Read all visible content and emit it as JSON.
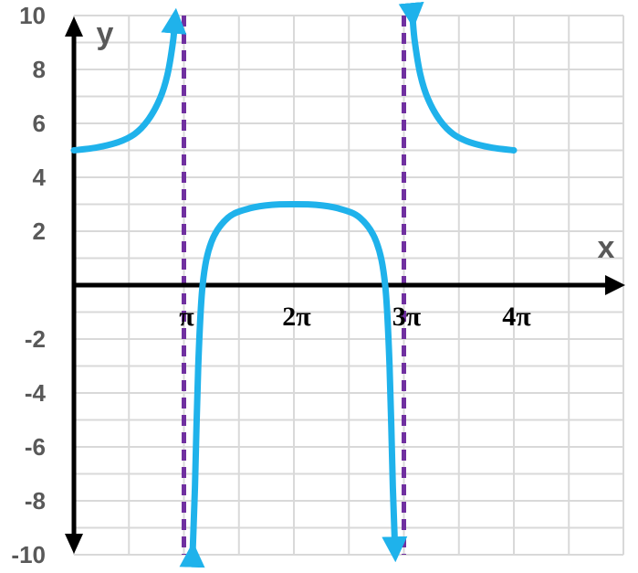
{
  "chart_data": {
    "type": "line",
    "xlabel": "x",
    "ylabel": "y",
    "ylim": [
      -10,
      10
    ],
    "xlim": [
      0,
      4.5
    ],
    "x_unit": "π",
    "grid": true,
    "y_ticks": [
      {
        "value": 10,
        "label": "10"
      },
      {
        "value": 8,
        "label": "8"
      },
      {
        "value": 6,
        "label": "6"
      },
      {
        "value": 4,
        "label": "4"
      },
      {
        "value": 2,
        "label": "2"
      },
      {
        "value": -2,
        "label": "-2"
      },
      {
        "value": -4,
        "label": "-4"
      },
      {
        "value": -6,
        "label": "-6"
      },
      {
        "value": -8,
        "label": "-8"
      },
      {
        "value": -10,
        "label": "-10"
      }
    ],
    "x_ticks": [
      {
        "value": 1,
        "label": "π"
      },
      {
        "value": 2,
        "label": "2π"
      },
      {
        "value": 3,
        "label": "3π"
      },
      {
        "value": 4,
        "label": "4π"
      }
    ],
    "asymptotes": [
      1.0,
      3.0
    ],
    "series": [
      {
        "color": "#1FB2EB",
        "segments": [
          [
            [
              0.0,
              5.0
            ],
            [
              0.2,
              5.1
            ],
            [
              0.4,
              5.3
            ],
            [
              0.55,
              5.6
            ],
            [
              0.67,
              6.1
            ],
            [
              0.78,
              6.9
            ],
            [
              0.85,
              7.8
            ],
            [
              0.9,
              9.0
            ],
            [
              0.92,
              9.9
            ]
          ],
          [
            [
              1.08,
              -9.9
            ],
            [
              1.1,
              -7.5
            ],
            [
              1.13,
              -3.0
            ],
            [
              1.17,
              0.0
            ],
            [
              1.25,
              1.6
            ],
            [
              1.4,
              2.5
            ],
            [
              1.6,
              2.85
            ],
            [
              1.8,
              2.98
            ],
            [
              2.0,
              3.0
            ],
            [
              2.2,
              2.98
            ],
            [
              2.4,
              2.85
            ],
            [
              2.6,
              2.5
            ],
            [
              2.75,
              1.6
            ],
            [
              2.83,
              0.0
            ],
            [
              2.87,
              -3.0
            ],
            [
              2.9,
              -7.5
            ],
            [
              2.92,
              -9.9
            ]
          ],
          [
            [
              3.08,
              9.9
            ],
            [
              3.1,
              9.0
            ],
            [
              3.15,
              7.8
            ],
            [
              3.22,
              6.9
            ],
            [
              3.33,
              6.1
            ],
            [
              3.45,
              5.6
            ],
            [
              3.6,
              5.3
            ],
            [
              3.8,
              5.1
            ],
            [
              4.0,
              5.0
            ]
          ]
        ]
      }
    ],
    "colors": {
      "curve": "#1FB2EB",
      "asymptote": "#7030A0",
      "axis": "#000000",
      "grid": "#D9D9D9"
    }
  }
}
